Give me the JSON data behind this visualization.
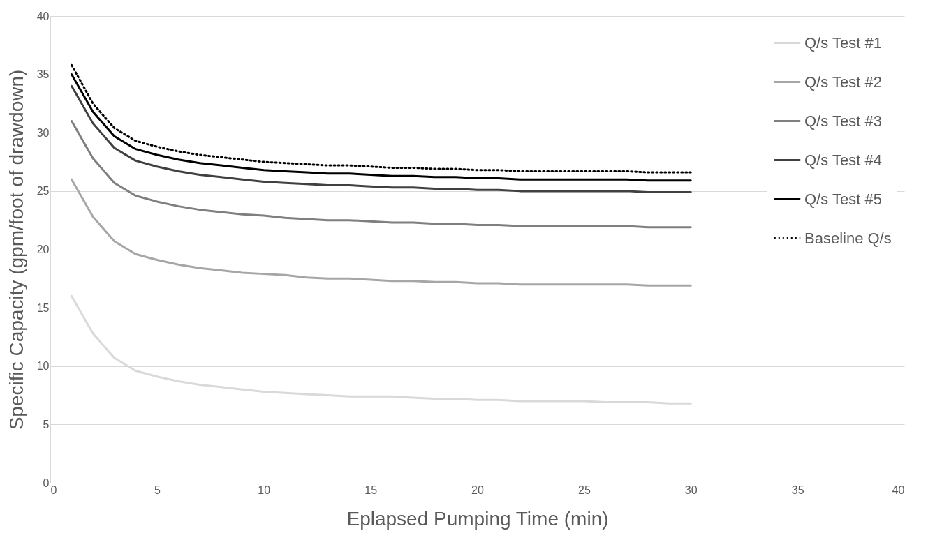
{
  "chart_data": {
    "type": "line",
    "xlabel": "Eplapsed Pumping Time (min)",
    "ylabel": "Specific Capacity (gpm/foot of drawdown)",
    "x": [
      1,
      2,
      3,
      4,
      5,
      6,
      7,
      8,
      9,
      10,
      11,
      12,
      13,
      14,
      15,
      16,
      17,
      18,
      19,
      20,
      21,
      22,
      23,
      24,
      25,
      26,
      27,
      28,
      29,
      30
    ],
    "series": [
      {
        "name": "Q/s Test #1",
        "color": "#d9d9d9",
        "line_style": "solid",
        "values": [
          16,
          12.8,
          10.7,
          9.6,
          9.1,
          8.7,
          8.4,
          8.2,
          8.0,
          7.8,
          7.7,
          7.6,
          7.5,
          7.4,
          7.4,
          7.4,
          7.3,
          7.2,
          7.2,
          7.1,
          7.1,
          7.0,
          7.0,
          7.0,
          7.0,
          6.9,
          6.9,
          6.9,
          6.8,
          6.8
        ]
      },
      {
        "name": "Q/s Test #2",
        "color": "#a6a6a6",
        "line_style": "solid",
        "values": [
          26,
          22.8,
          20.7,
          19.6,
          19.1,
          18.7,
          18.4,
          18.2,
          18.0,
          17.9,
          17.8,
          17.6,
          17.5,
          17.5,
          17.4,
          17.3,
          17.3,
          17.2,
          17.2,
          17.1,
          17.1,
          17.0,
          17.0,
          17.0,
          17.0,
          17.0,
          17.0,
          16.9,
          16.9,
          16.9
        ]
      },
      {
        "name": "Q/s Test #3",
        "color": "#7f7f7f",
        "line_style": "solid",
        "values": [
          31,
          27.8,
          25.7,
          24.6,
          24.1,
          23.7,
          23.4,
          23.2,
          23.0,
          22.9,
          22.7,
          22.6,
          22.5,
          22.5,
          22.4,
          22.3,
          22.3,
          22.2,
          22.2,
          22.1,
          22.1,
          22.0,
          22.0,
          22.0,
          22.0,
          22.0,
          22.0,
          21.9,
          21.9,
          21.9
        ]
      },
      {
        "name": "Q/s Test #4",
        "color": "#404040",
        "line_style": "solid",
        "values": [
          34,
          30.8,
          28.7,
          27.6,
          27.1,
          26.7,
          26.4,
          26.2,
          26.0,
          25.8,
          25.7,
          25.6,
          25.5,
          25.5,
          25.4,
          25.3,
          25.3,
          25.2,
          25.2,
          25.1,
          25.1,
          25.0,
          25.0,
          25.0,
          25.0,
          25.0,
          25.0,
          24.9,
          24.9,
          24.9
        ]
      },
      {
        "name": "Q/s Test #5",
        "color": "#000000",
        "line_style": "solid",
        "values": [
          35,
          31.8,
          29.7,
          28.6,
          28.1,
          27.7,
          27.4,
          27.2,
          27.0,
          26.8,
          26.7,
          26.6,
          26.5,
          26.5,
          26.4,
          26.3,
          26.3,
          26.2,
          26.2,
          26.1,
          26.1,
          26.0,
          26.0,
          26.0,
          26.0,
          26.0,
          26.0,
          25.9,
          25.9,
          25.9
        ]
      },
      {
        "name": "Baseline Q/s",
        "color": "#000000",
        "line_style": "dotted",
        "values": [
          35.8,
          32.5,
          30.4,
          29.3,
          28.8,
          28.4,
          28.1,
          27.9,
          27.7,
          27.5,
          27.4,
          27.3,
          27.2,
          27.2,
          27.1,
          27.0,
          27.0,
          26.9,
          26.9,
          26.8,
          26.8,
          26.7,
          26.7,
          26.7,
          26.7,
          26.7,
          26.7,
          26.6,
          26.6,
          26.6
        ]
      }
    ],
    "xlim": [
      0,
      40
    ],
    "xticks": [
      0,
      5,
      10,
      15,
      20,
      25,
      30,
      35,
      40
    ],
    "ylim": [
      0,
      40
    ],
    "yticks": [
      0,
      5,
      10,
      15,
      20,
      25,
      30,
      35,
      40
    ],
    "grid": "y",
    "legend": "top right",
    "marker": "none"
  }
}
